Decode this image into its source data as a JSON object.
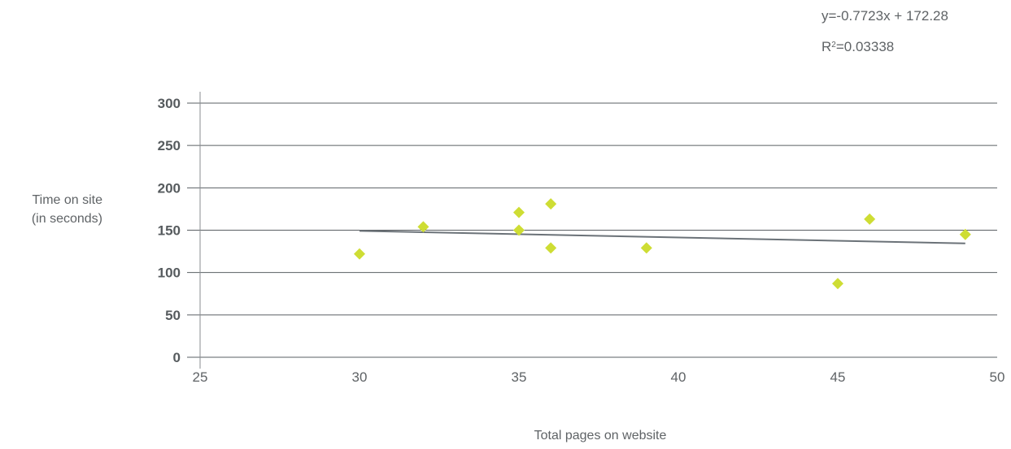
{
  "chart_data": {
    "type": "scatter",
    "xlabel": "Total pages on website",
    "ylabel_lines": [
      "Time on site",
      "(in seconds)"
    ],
    "xlim": [
      25,
      50
    ],
    "ylim": [
      0,
      300
    ],
    "x_ticks": [
      25,
      30,
      35,
      40,
      45,
      50
    ],
    "y_ticks": [
      0,
      50,
      100,
      150,
      200,
      250,
      300
    ],
    "grid": "horizontal",
    "marker": "diamond",
    "points": [
      {
        "x": 30,
        "y": 122
      },
      {
        "x": 32,
        "y": 154
      },
      {
        "x": 35,
        "y": 171
      },
      {
        "x": 35,
        "y": 150
      },
      {
        "x": 36,
        "y": 181
      },
      {
        "x": 36,
        "y": 129
      },
      {
        "x": 39,
        "y": 129
      },
      {
        "x": 45,
        "y": 87
      },
      {
        "x": 46,
        "y": 163
      },
      {
        "x": 49,
        "y": 145
      }
    ],
    "trendline": {
      "type": "linear",
      "x_range": [
        30,
        49
      ],
      "equation": "y=-0.7723x + 172.28",
      "r_squared_label": "R",
      "r_squared_sup": "2",
      "r_squared_value": "=0.03338"
    },
    "colors": {
      "marker": "#cedd34",
      "trendline": "#6b7278",
      "grid": "#5a5f63",
      "axis": "#8a8e91"
    }
  }
}
